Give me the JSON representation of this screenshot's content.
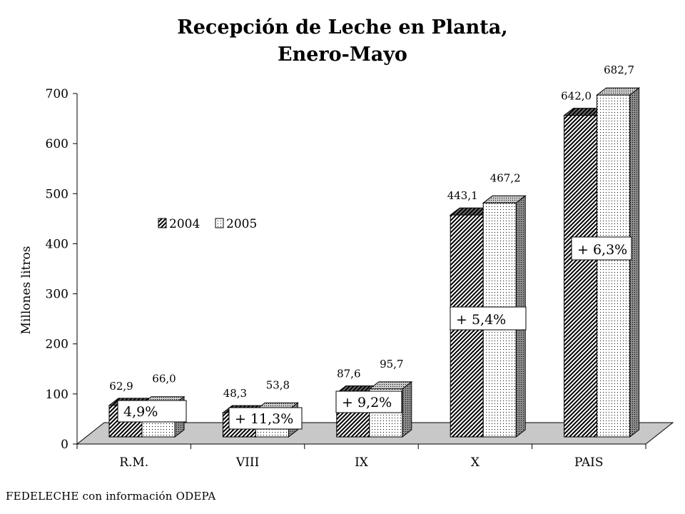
{
  "title_line1": "Recepción de Leche en Planta,",
  "title_line2": "Enero-Mayo",
  "source_text": "FEDELECHE  con información ODEPA",
  "colors": {
    "floor": "#c8c8c8",
    "bar2004": "#808080",
    "bar2005": "#ffffff"
  },
  "chart_data": {
    "type": "bar",
    "title": "Recepción de Leche en Planta, Enero-Mayo",
    "xlabel": "",
    "ylabel": "Millones litros",
    "ylim": [
      0,
      700
    ],
    "yticks": [
      0,
      100,
      200,
      300,
      400,
      500,
      600,
      700
    ],
    "grid": false,
    "legend_position": "upper-left-inside",
    "categories": [
      "R.M.",
      "VIII",
      "IX",
      "X",
      "PAIS"
    ],
    "series": [
      {
        "name": "2004",
        "pattern": "hatched",
        "values": [
          62.9,
          48.3,
          87.6,
          443.1,
          642.0
        ],
        "labels": [
          "62,9",
          "48,3",
          "87,6",
          "443,1",
          "642,0"
        ]
      },
      {
        "name": "2005",
        "pattern": "dotted",
        "values": [
          66.0,
          53.8,
          95.7,
          467.2,
          682.7
        ],
        "labels": [
          "66,0",
          "53,8",
          "95,7",
          "467,2",
          "682,7"
        ]
      }
    ],
    "annotations": [
      "4,9%",
      "+ 11,3%",
      "+ 9,2%",
      "+ 5,4%",
      "+ 6,3%"
    ]
  }
}
